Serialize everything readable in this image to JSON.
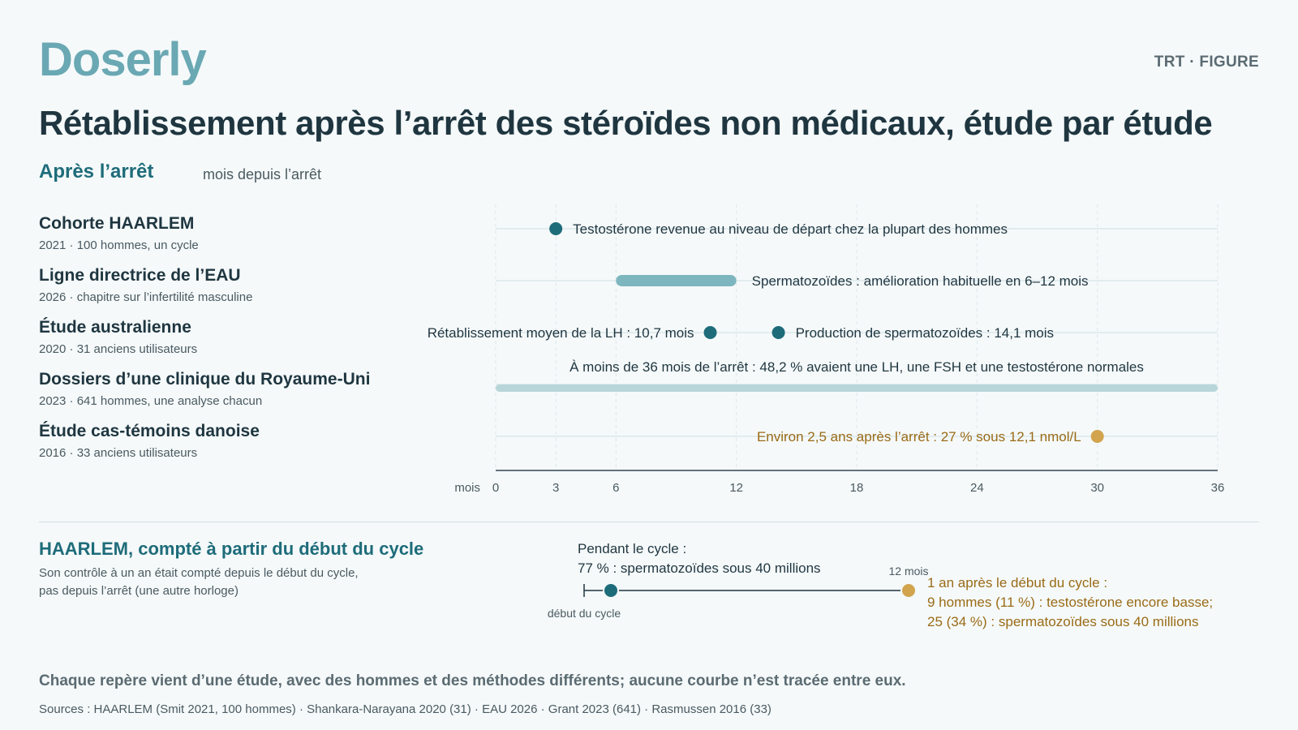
{
  "brand": {
    "logo": "Doserly",
    "tag": "TRT · FIGURE"
  },
  "title": "Rétablissement après l’arrêt des stéroïdes non médicaux, étude par étude",
  "section": "Après l’arrêt",
  "axis_caption": "mois depuis l’arrêt",
  "colors": {
    "teal_dark": "#1e6c7a",
    "teal_light": "#7db6bf",
    "teal_pale": "#b8d6da",
    "gold": "#d2a44e",
    "gold_text": "#9a6b16"
  },
  "chart_data": {
    "type": "timeline",
    "x_unit_label": "mois",
    "xlim": [
      0,
      36
    ],
    "x_ticks": [
      0,
      3,
      6,
      12,
      18,
      24,
      30,
      36
    ],
    "grid": true,
    "rows": [
      {
        "name": "Cohorte HAARLEM",
        "meta": "2021 · 100 hommes, un cycle",
        "marks": [
          {
            "kind": "point",
            "x": 3,
            "color": "teal_dark",
            "label": "Testostérone revenue au niveau de départ chez la plupart des hommes",
            "label_side": "right"
          }
        ]
      },
      {
        "name": "Ligne directrice de l’EAU",
        "meta": "2026 · chapitre sur l’infertilité masculine",
        "marks": [
          {
            "kind": "range",
            "x0": 6,
            "x1": 12,
            "color": "teal_light",
            "label": "Spermatozoïdes : amélioration habituelle en 6–12 mois",
            "label_side": "right"
          }
        ]
      },
      {
        "name": "Étude australienne",
        "meta": "2020 · 31 anciens utilisateurs",
        "marks": [
          {
            "kind": "point",
            "x": 10.7,
            "color": "teal_dark",
            "label": "Rétablissement moyen de la LH : 10,7 mois",
            "label_side": "left"
          },
          {
            "kind": "point",
            "x": 14.1,
            "color": "teal_dark",
            "label": "Production de spermatozoïdes : 14,1 mois",
            "label_side": "right"
          }
        ]
      },
      {
        "name": "Dossiers d’une clinique du Royaume-Uni",
        "meta": "2023 · 641 hommes, une analyse chacun",
        "marks": [
          {
            "kind": "range",
            "x0": 0,
            "x1": 36,
            "color": "teal_pale",
            "label": "À moins de 36 mois de l’arrêt : 48,2 % avaient une LH, une FSH et une testostérone normales",
            "label_side": "above"
          }
        ]
      },
      {
        "name": "Étude cas-témoins danoise",
        "meta": "2016 · 33 anciens utilisateurs",
        "marks": [
          {
            "kind": "point",
            "x": 30,
            "color": "gold",
            "label": "Environ 2,5 ans après l’arrêt : 27 % sous 12,1 nmol/L",
            "label_side": "left"
          }
        ]
      }
    ]
  },
  "bottom": {
    "title": "HAARLEM, compté à partir du début du cycle",
    "note": "Son contrôle à un an était compté depuis le début du cycle, pas depuis l’arrêt (une autre horloge)",
    "start_label": "début du cycle",
    "during_line1": "Pendant le cycle :",
    "during_line2": "77 % : spermatozoïdes sous 40 millions",
    "end_tick": "12 mois",
    "after_line1": "1 an après le début du cycle :",
    "after_line2": "9 hommes (11 %) : testostérone encore basse;",
    "after_line3": "25 (34 %) : spermatozoïdes sous 40 millions"
  },
  "footer": "Chaque repère vient d’une étude, avec des hommes et des méthodes différents; aucune courbe n’est tracée entre eux.",
  "sources": "Sources : HAARLEM (Smit 2021, 100 hommes) · Shankara-Narayana 2020 (31) · EAU 2026 · Grant 2023 (641) · Rasmussen 2016 (33)"
}
